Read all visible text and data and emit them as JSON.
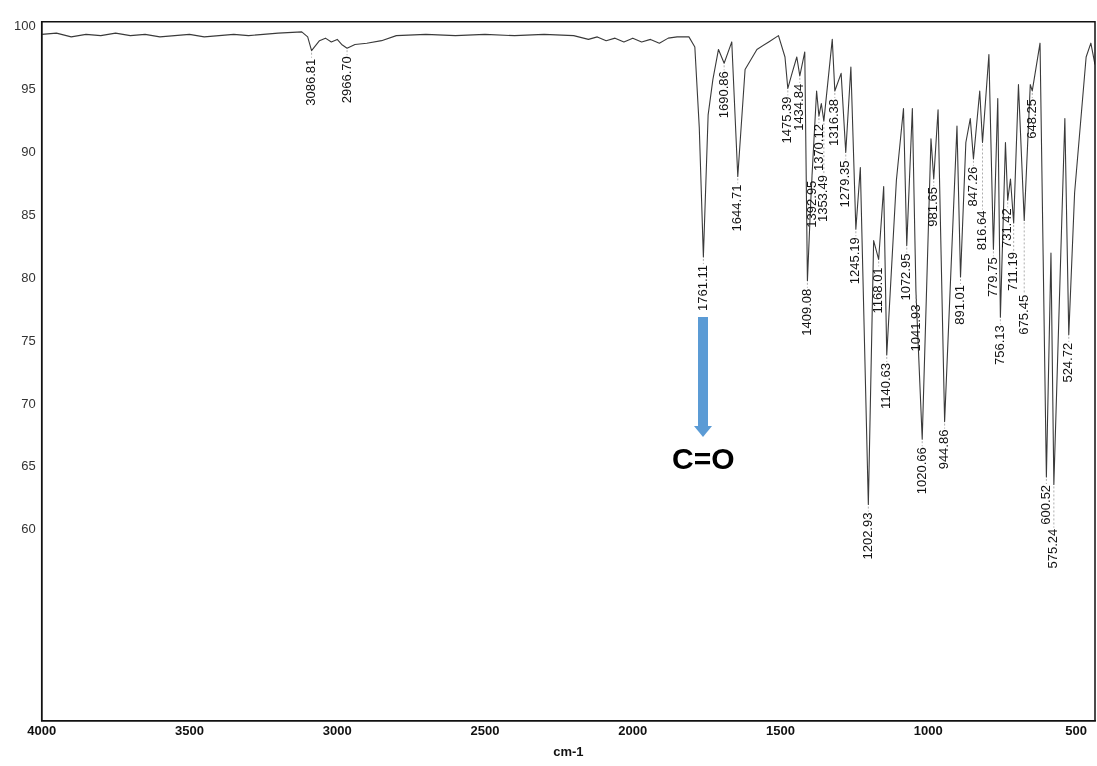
{
  "chart_data": {
    "type": "line",
    "xlabel": "cm-1",
    "marker": "none",
    "xlim": [
      4000,
      436
    ],
    "xticks": [
      4000,
      3500,
      3000,
      2500,
      2000,
      1500,
      1000,
      500
    ],
    "ylim": [
      44.8,
      100.4
    ],
    "yticks": [
      60,
      65,
      70,
      75,
      80,
      85,
      90,
      95,
      100
    ],
    "x": [
      4000,
      3950,
      3900,
      3850,
      3800,
      3750,
      3700,
      3650,
      3600,
      3550,
      3500,
      3450,
      3400,
      3350,
      3300,
      3250,
      3200,
      3120,
      3100,
      3086.81,
      3060,
      3040,
      3020,
      3000,
      2985,
      2966.7,
      2940,
      2900,
      2850,
      2800,
      2700,
      2600,
      2500,
      2400,
      2300,
      2200,
      2150,
      2120,
      2090,
      2060,
      2030,
      2000,
      1970,
      1940,
      1910,
      1880,
      1850,
      1810,
      1790,
      1775,
      1761.11,
      1745,
      1729,
      1710,
      1690.86,
      1665,
      1644.71,
      1620,
      1580,
      1540,
      1507,
      1485,
      1475.39,
      1460,
      1445,
      1434.84,
      1418,
      1409.08,
      1398,
      1392.95,
      1378,
      1370.12,
      1362,
      1353.49,
      1325,
      1316.38,
      1295,
      1279.35,
      1262,
      1245.19,
      1230,
      1202.93,
      1185,
      1168.01,
      1151,
      1140.63,
      1108,
      1084,
      1072.95,
      1054,
      1041.93,
      1020.66,
      991,
      981.65,
      967,
      944.86,
      903,
      891.01,
      873,
      858,
      847.26,
      826,
      816.64,
      795,
      779.75,
      765,
      756.13,
      739,
      731.42,
      722,
      711.19,
      695,
      675.45,
      655,
      648.25,
      622,
      600.52,
      585,
      575.24,
      538,
      524.72,
      505,
      466,
      450,
      436
    ],
    "series": [
      {
        "color": "#3a3a3a",
        "values": [
          99.4,
          99.5,
          99.2,
          99.4,
          99.3,
          99.5,
          99.3,
          99.4,
          99.2,
          99.3,
          99.4,
          99.2,
          99.3,
          99.4,
          99.3,
          99.4,
          99.5,
          99.6,
          99.2,
          98.1,
          98.9,
          99.1,
          98.8,
          99.0,
          98.6,
          98.3,
          98.6,
          98.7,
          98.9,
          99.3,
          99.4,
          99.3,
          99.4,
          99.3,
          99.4,
          99.3,
          99.0,
          99.2,
          98.9,
          99.1,
          98.8,
          99.1,
          98.8,
          99.0,
          98.7,
          99.1,
          99.2,
          99.2,
          98.4,
          92,
          81.7,
          93,
          95.8,
          98.2,
          97.1,
          98.8,
          88.1,
          96.6,
          98.2,
          98.8,
          99.3,
          97.6,
          95.1,
          96.4,
          97.6,
          96.1,
          98.0,
          79.8,
          86,
          88.4,
          94.9,
          92.9,
          93.9,
          92.5,
          99.0,
          94.9,
          96.3,
          90.0,
          96.8,
          83.9,
          88.8,
          62.0,
          83.0,
          81.5,
          87.3,
          73.9,
          87.8,
          93.5,
          82.6,
          93.5,
          79.0,
          67.2,
          91.1,
          87.9,
          93.4,
          68.6,
          92.1,
          80.1,
          90.8,
          92.7,
          89.5,
          94.9,
          90.8,
          97.8,
          82.3,
          94.3,
          76.9,
          90.8,
          86.2,
          87.9,
          84.4,
          95.4,
          84.6,
          95.4,
          94.9,
          98.7,
          64.2,
          82.0,
          63.6,
          92.7,
          75.5,
          86.8,
          97.6,
          98.7,
          97.0
        ]
      }
    ],
    "annotations": [
      {
        "text": "3086.81",
        "x": 3086.81,
        "y": 98.1
      },
      {
        "text": "2966.70",
        "x": 2966.7,
        "y": 98.3
      },
      {
        "text": "1761.11",
        "x": 1761.11,
        "y": 81.7
      },
      "C=O",
      {
        "text": "1690.86",
        "x": 1690.86,
        "y": 97.1
      },
      {
        "text": "1644.71",
        "x": 1644.71,
        "y": 88.1
      },
      {
        "text": "1475.39",
        "x": 1475.39,
        "y": 95.1
      },
      {
        "text": "1434.84",
        "x": 1434.84,
        "y": 96.1
      },
      {
        "text": "1409.08",
        "x": 1409.08,
        "y": 79.8
      },
      {
        "text": "1392.95",
        "x": 1392.95,
        "y": 88.4
      },
      {
        "text": "1370.12",
        "x": 1370.12,
        "y": 92.9
      },
      {
        "text": "1353.49",
        "x": 1353.49,
        "y": 92.5
      },
      {
        "text": "1316.38",
        "x": 1316.38,
        "y": 94.9
      },
      {
        "text": "1279.35",
        "x": 1279.35,
        "y": 90.0
      },
      {
        "text": "1245.19",
        "x": 1245.19,
        "y": 83.9
      },
      {
        "text": "1202.93",
        "x": 1202.93,
        "y": 62.0
      },
      {
        "text": "1168.01",
        "x": 1168.01,
        "y": 81.5
      },
      {
        "text": "1140.63",
        "x": 1140.63,
        "y": 73.9
      },
      {
        "text": "1072.95",
        "x": 1072.95,
        "y": 82.6
      },
      {
        "text": "1041.93",
        "x": 1041.93,
        "y": 79.0
      },
      {
        "text": "1020.66",
        "x": 1020.66,
        "y": 67.2
      },
      {
        "text": "981.65",
        "x": 981.65,
        "y": 87.9
      },
      {
        "text": "944.86",
        "x": 944.86,
        "y": 68.6
      },
      {
        "text": "891.01",
        "x": 891.01,
        "y": 80.1
      },
      {
        "text": "847.26",
        "x": 847.26,
        "y": 89.5
      },
      {
        "text": "816.64",
        "x": 816.64,
        "y": 90.8
      },
      {
        "text": "779.75",
        "x": 779.75,
        "y": 82.3
      },
      {
        "text": "756.13",
        "x": 756.13,
        "y": 76.9
      },
      {
        "text": "731.42",
        "x": 731.42,
        "y": 86.2
      },
      {
        "text": "711.19",
        "x": 711.19,
        "y": 84.4
      },
      {
        "text": "675.45",
        "x": 675.45,
        "y": 84.6
      },
      {
        "text": "648.25",
        "x": 648.25,
        "y": 94.9
      },
      {
        "text": "600.52",
        "x": 600.52,
        "y": 64.2
      },
      {
        "text": "575.24",
        "x": 575.24,
        "y": 63.6
      },
      {
        "text": "524.72",
        "x": 524.72,
        "y": 75.5
      }
    ]
  }
}
